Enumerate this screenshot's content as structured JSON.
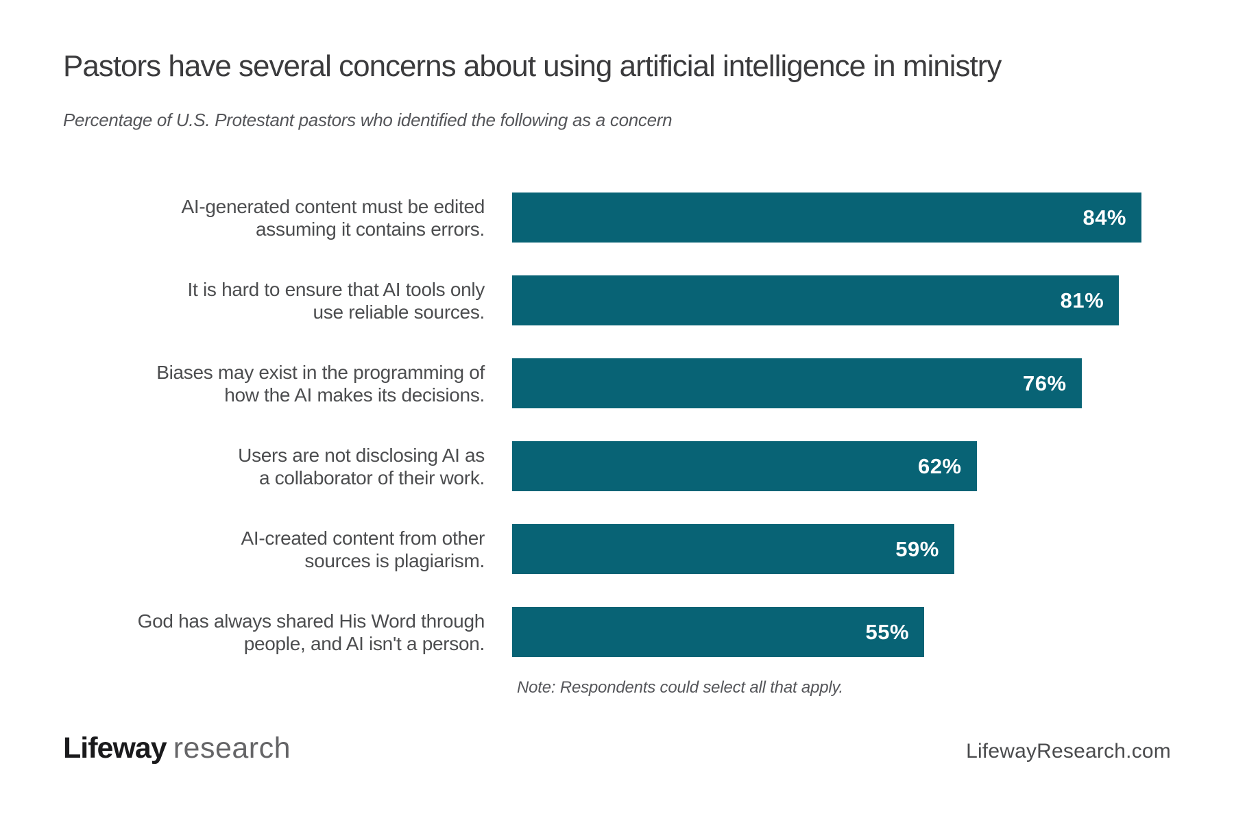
{
  "header": {
    "title": "Pastors have several concerns about using artificial intelligence in ministry",
    "subtitle": "Percentage of U.S. Protestant pastors who identified the following as a concern"
  },
  "chart_data": {
    "type": "bar",
    "orientation": "horizontal",
    "title": "Pastors have several concerns about using artificial intelligence in ministry",
    "subtitle": "Percentage of U.S. Protestant pastors who identified the following as a concern",
    "categories": [
      "AI-generated content must be edited assuming it contains errors.",
      "It is hard to ensure that AI tools only use reliable sources.",
      "Biases may exist in the programming of how the AI makes its decisions.",
      "Users are not disclosing AI as a collaborator of their work.",
      "AI-created content from other sources is plagiarism.",
      "God has always shared His Word through people, and AI isn't a person."
    ],
    "values": [
      84,
      81,
      76,
      62,
      59,
      55
    ],
    "value_labels": [
      "84%",
      "81%",
      "76%",
      "62%",
      "59%",
      "55%"
    ],
    "xlim": [
      0,
      84
    ],
    "grid": false,
    "legend": false,
    "value_label_position": "inside-end",
    "bar_color": "#086375",
    "value_label_color": "#FFFFFF",
    "note": "Note: Respondents could select all that apply."
  },
  "rows": [
    {
      "label_line1": "AI-generated content must be edited",
      "label_line2": "assuming it contains errors.",
      "value": 84,
      "value_label": "84%"
    },
    {
      "label_line1": "It is hard to ensure that AI tools only",
      "label_line2": "use reliable sources.",
      "value": 81,
      "value_label": "81%"
    },
    {
      "label_line1": "Biases may exist in the programming of",
      "label_line2": "how the AI makes its decisions.",
      "value": 76,
      "value_label": "76%"
    },
    {
      "label_line1": "Users are not disclosing AI as",
      "label_line2": "a collaborator of their work.",
      "value": 62,
      "value_label": "62%"
    },
    {
      "label_line1": "AI-created content from other",
      "label_line2": "sources is plagiarism.",
      "value": 59,
      "value_label": "59%"
    },
    {
      "label_line1": "God has always shared His Word through",
      "label_line2": "people, and AI isn't a person.",
      "value": 55,
      "value_label": "55%"
    }
  ],
  "footer": {
    "note": "Note: Respondents could select all that apply.",
    "logo_primary": "Lifeway",
    "logo_secondary": "research",
    "website": "LifewayResearch.com"
  },
  "colors": {
    "bar": "#086375",
    "title_text": "#3B3B3D",
    "label_text": "#4C4D4F",
    "muted_text": "#55565A",
    "background": "#FFFFFF"
  }
}
